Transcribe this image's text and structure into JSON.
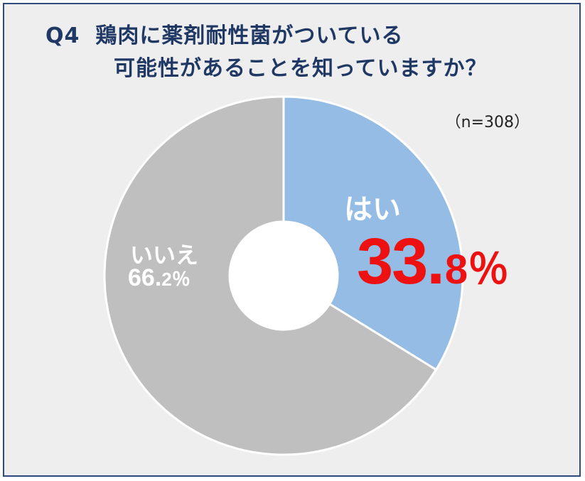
{
  "title": {
    "q_label": "Q4",
    "line1": "鶏肉に薬剤耐性菌がついている",
    "line2": "可能性があることを知っていますか？"
  },
  "sample_note": "（n=308）",
  "colors": {
    "yes": "#95bce4",
    "no": "#bfbfbf",
    "highlight": "#ee1111",
    "title": "#1f3864"
  },
  "chart_data": {
    "type": "pie",
    "donut": true,
    "n": 308,
    "slices": [
      {
        "label": "はい",
        "value": 33.8,
        "value_label": "33.8%"
      },
      {
        "label": "いいえ",
        "value": 66.2,
        "value_label": "66.2%"
      }
    ]
  },
  "labels": {
    "yes_text": "はい",
    "yes_pct_main": "33.",
    "yes_pct_tail": "8％",
    "no_text": "いいえ",
    "no_pct_main": "66.",
    "no_pct_tail": "2％"
  }
}
